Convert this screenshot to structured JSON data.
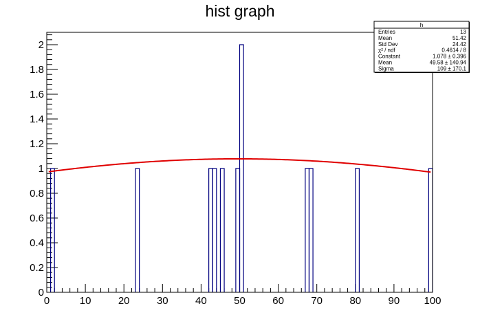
{
  "chart_data": {
    "type": "bar",
    "style": "step-histogram",
    "title": "hist graph",
    "xlim": [
      0,
      100
    ],
    "ylim": [
      0,
      2.1
    ],
    "x_ticks": [
      0,
      10,
      20,
      30,
      40,
      50,
      60,
      70,
      80,
      90,
      100
    ],
    "x_tick_labels": [
      "0",
      "10",
      "20",
      "30",
      "40",
      "50",
      "60",
      "70",
      "80",
      "90",
      "100"
    ],
    "y_ticks": [
      0,
      0.2,
      0.4,
      0.6,
      0.8,
      1,
      1.2,
      1.4,
      1.6,
      1.8,
      2
    ],
    "y_tick_labels": [
      "0",
      "0.2",
      "0.4",
      "0.6",
      "0.8",
      "1",
      "1.2",
      "1.4",
      "1.6",
      "1.8",
      "2"
    ],
    "bin_width": 1,
    "bins": [
      {
        "x": 1,
        "value": 1
      },
      {
        "x": 23,
        "value": 1
      },
      {
        "x": 42,
        "value": 1
      },
      {
        "x": 43,
        "value": 1
      },
      {
        "x": 45,
        "value": 1
      },
      {
        "x": 49,
        "value": 1
      },
      {
        "x": 50,
        "value": 2
      },
      {
        "x": 67,
        "value": 1
      },
      {
        "x": 68,
        "value": 1
      },
      {
        "x": 80,
        "value": 1
      },
      {
        "x": 99,
        "value": 1
      }
    ],
    "fit": {
      "function": "gaus",
      "constant": 1.078,
      "mean": 49.58,
      "sigma": 109,
      "x_range": [
        0.5,
        99.5
      ]
    },
    "colors": {
      "histogram": "#00007f",
      "fit": "#e00000",
      "axes": "#000000"
    },
    "stats_box": {
      "title": "h",
      "rows": [
        {
          "label": "Entries",
          "value": "13"
        },
        {
          "label": "Mean",
          "value": "51.42"
        },
        {
          "label": "Std Dev",
          "value": "24.42"
        },
        {
          "label": "χ² / ndf",
          "value": "0.4614 / 8"
        },
        {
          "label": "Constant",
          "value": "1.078 ± 0.396"
        },
        {
          "label": "Mean",
          "value": "49.58 ± 140.94"
        },
        {
          "label": "Sigma",
          "value": "109 ± 170.1"
        }
      ],
      "placement": "top-right"
    }
  }
}
